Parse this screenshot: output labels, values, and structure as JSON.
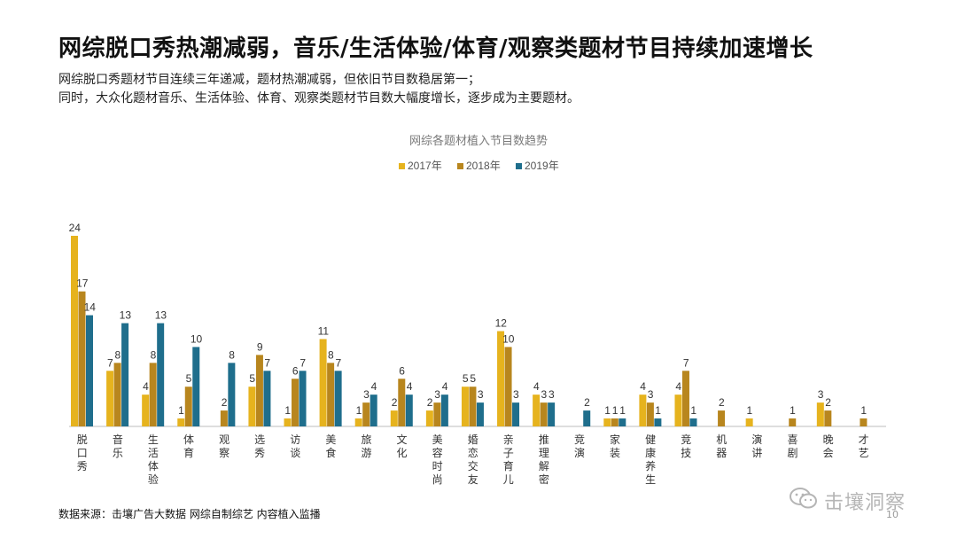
{
  "page": {
    "title": "网综脱口秀热潮减弱，音乐/生活体验/体育/观察类题材节目持续加速增长",
    "subtitle_lines": [
      "网综脱口秀题材节目连续三年递减，题材热潮减弱，但依旧节目数稳居第一；",
      "同时，大众化题材音乐、生活体验、体育、观察类题材节目数大幅度增长，逐步成为主要题材。"
    ],
    "source": "数据来源：击壤广告大数据 网综自制综艺 内容植入监播",
    "page_number": "10",
    "watermark_text": "击壤洞察"
  },
  "chart_data": {
    "type": "bar",
    "title": "网综各题材植入节目数趋势",
    "xlabel": "",
    "ylabel": "",
    "ylim": [
      0,
      24
    ],
    "grid": false,
    "legend_position": "top-center",
    "categories": [
      "脱口秀",
      "音乐",
      "生活体验",
      "体育",
      "观察",
      "选秀",
      "访谈",
      "美食",
      "旅游",
      "文化",
      "美容时尚",
      "婚恋交友",
      "亲子育儿",
      "推理解密",
      "竞演",
      "家装",
      "健康养生",
      "竞技",
      "机器",
      "演讲",
      "喜剧",
      "晚会",
      "才艺"
    ],
    "series": [
      {
        "name": "2017年",
        "color": "#E6B31E",
        "values": [
          24,
          7,
          4,
          1,
          null,
          5,
          1,
          11,
          1,
          2,
          2,
          5,
          12,
          4,
          null,
          1,
          4,
          4,
          null,
          1,
          null,
          3,
          null
        ]
      },
      {
        "name": "2018年",
        "color": "#B8861E",
        "values": [
          17,
          8,
          8,
          5,
          2,
          9,
          6,
          8,
          3,
          6,
          3,
          5,
          10,
          3,
          null,
          1,
          3,
          7,
          2,
          null,
          1,
          2,
          1
        ]
      },
      {
        "name": "2019年",
        "color": "#1F6E8C",
        "values": [
          14,
          13,
          13,
          10,
          8,
          7,
          7,
          7,
          4,
          4,
          4,
          3,
          3,
          3,
          2,
          1,
          1,
          1,
          null,
          null,
          null,
          null,
          null
        ]
      }
    ]
  }
}
